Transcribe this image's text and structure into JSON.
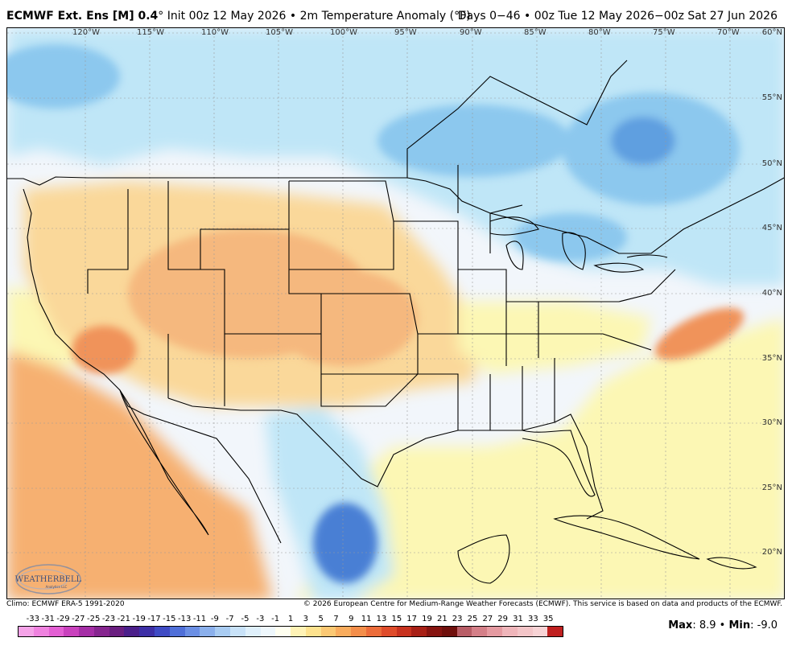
{
  "header": {
    "model": "ECMWF Ext. Ens [M] 0.4",
    "deg": "°",
    "init": "Init 00z 12 May 2026",
    "sep": "•",
    "field": "2m Temperature Anomaly (°F)",
    "range": "Days 0−46",
    "valid": "00z Tue 12 May 2026−00z Sat 27 Jun 2026"
  },
  "map": {
    "lon_labels": [
      "120°W",
      "115°W",
      "110°W",
      "105°W",
      "100°W",
      "95°W",
      "90°W",
      "85°W",
      "80°W",
      "75°W",
      "70°W"
    ],
    "lat_labels": [
      "60°N",
      "55°N",
      "50°N",
      "45°N",
      "40°N",
      "35°N",
      "30°N",
      "25°N",
      "20°N"
    ],
    "colors": {
      "ocean_warm": "#f6b071",
      "warm_light": "#fad89a",
      "warm_mid": "#f5b87e",
      "warm_strong": "#f0935a",
      "yellow": "#fcf7b4",
      "neutral": "#f2f6fb",
      "cool_light": "#bfe6f7",
      "cool_mid": "#8cc8ee",
      "cool_strong": "#5f9fe0",
      "cool_deep": "#4a7fd4",
      "border": "#000000"
    }
  },
  "logo": {
    "text": "WEATHERBELL",
    "subtext": "Analytics LLC"
  },
  "footer": {
    "climo": "Climo: ECMWF ERA-5 1991-2020",
    "copyright": "© 2026 European Centre for Medium-Range Weather Forecasts (ECMWF). This service is based on data and products of the ECMWF."
  },
  "scale": {
    "labels": [
      "-33",
      "-31",
      "-29",
      "-27",
      "-25",
      "-23",
      "-21",
      "-19",
      "-17",
      "-15",
      "-13",
      "-11",
      "-9",
      "-7",
      "-5",
      "-3",
      "-1",
      "1",
      "3",
      "5",
      "7",
      "9",
      "11",
      "13",
      "15",
      "17",
      "19",
      "21",
      "23",
      "25",
      "27",
      "29",
      "31",
      "33",
      "35"
    ],
    "colors": [
      "#f5a3e8",
      "#ef82df",
      "#e35fd3",
      "#c941bd",
      "#a52ea6",
      "#86258f",
      "#6a1e80",
      "#4b1f8a",
      "#3d2fa6",
      "#3f4bc4",
      "#4f6fd8",
      "#6b8fe4",
      "#8bb0ec",
      "#a9ccf2",
      "#c8e2f8",
      "#dff0fb",
      "#eef7fc",
      "#fffff0",
      "#fff3b6",
      "#fde28e",
      "#fbc873",
      "#f9ac5d",
      "#f48e4a",
      "#ec6c3a",
      "#df4c2b",
      "#c8321f",
      "#a82016",
      "#861410",
      "#6f0f0c",
      "#b85d66",
      "#d47f88",
      "#e59aa1",
      "#efb5ba",
      "#f3c5c8",
      "#f7d3d5",
      "#c02020"
    ]
  },
  "stats": {
    "max_label": "Max",
    "max_value": ": 8.9",
    "sep": "•",
    "min_label": "Min",
    "min_value": ": -9.0"
  }
}
